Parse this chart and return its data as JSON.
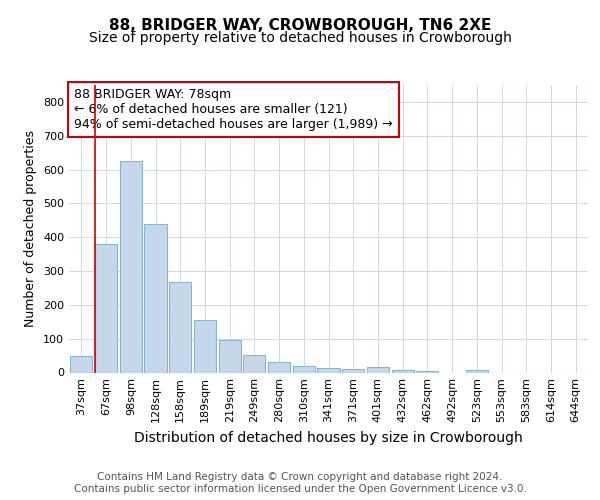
{
  "title": "88, BRIDGER WAY, CROWBOROUGH, TN6 2XE",
  "subtitle": "Size of property relative to detached houses in Crowborough",
  "xlabel": "Distribution of detached houses by size in Crowborough",
  "ylabel": "Number of detached properties",
  "categories": [
    "37sqm",
    "67sqm",
    "98sqm",
    "128sqm",
    "158sqm",
    "189sqm",
    "219sqm",
    "249sqm",
    "280sqm",
    "310sqm",
    "341sqm",
    "371sqm",
    "401sqm",
    "432sqm",
    "462sqm",
    "492sqm",
    "523sqm",
    "553sqm",
    "583sqm",
    "614sqm",
    "644sqm"
  ],
  "values": [
    48,
    380,
    625,
    438,
    268,
    155,
    96,
    52,
    30,
    18,
    12,
    10,
    15,
    8,
    4,
    0,
    7,
    0,
    0,
    0,
    0
  ],
  "bar_color": "#c5d8eb",
  "bar_edge_color": "#8ab4cf",
  "property_line_color": "#cc0000",
  "annotation_text": "88 BRIDGER WAY: 78sqm\n← 6% of detached houses are smaller (121)\n94% of semi-detached houses are larger (1,989) →",
  "annotation_box_color": "#ffffff",
  "annotation_box_edge_color": "#cc0000",
  "footer_text": "Contains HM Land Registry data © Crown copyright and database right 2024.\nContains public sector information licensed under the Open Government Licence v3.0.",
  "ylim": [
    0,
    850
  ],
  "yticks": [
    0,
    100,
    200,
    300,
    400,
    500,
    600,
    700,
    800
  ],
  "background_color": "#ffffff",
  "grid_color": "#d0d8e8",
  "title_fontsize": 11,
  "subtitle_fontsize": 10,
  "xlabel_fontsize": 10,
  "ylabel_fontsize": 9,
  "annotation_fontsize": 9,
  "tick_fontsize": 8,
  "footer_fontsize": 7.5
}
